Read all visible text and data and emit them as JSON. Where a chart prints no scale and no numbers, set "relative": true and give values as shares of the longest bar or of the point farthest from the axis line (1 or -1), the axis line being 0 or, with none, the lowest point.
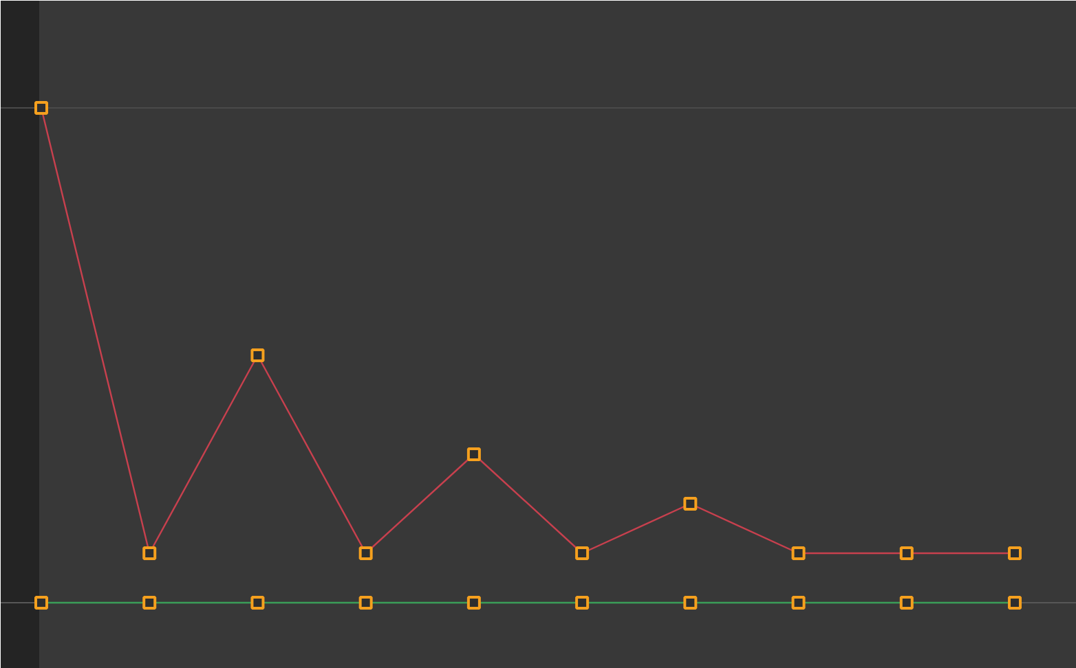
{
  "chart_data": {
    "type": "line",
    "relative": true,
    "marker": "square",
    "line_style": "solid",
    "categories": [
      null,
      null,
      null,
      null,
      null,
      null,
      null,
      null,
      null,
      null
    ],
    "series": [
      {
        "color": "#c8404e",
        "values": [
          1,
          0.1,
          0.5,
          0.1,
          0.3,
          0.1,
          0.2,
          0.1,
          0.1,
          0.1
        ]
      },
      {
        "color": "#3a9e58",
        "values": [
          0,
          0,
          0,
          0,
          0,
          0,
          0,
          0,
          0,
          0
        ]
      }
    ],
    "ref_lines": [
      {
        "axis": "y",
        "value": 1,
        "color": "#4a4a4a"
      }
    ]
  }
}
